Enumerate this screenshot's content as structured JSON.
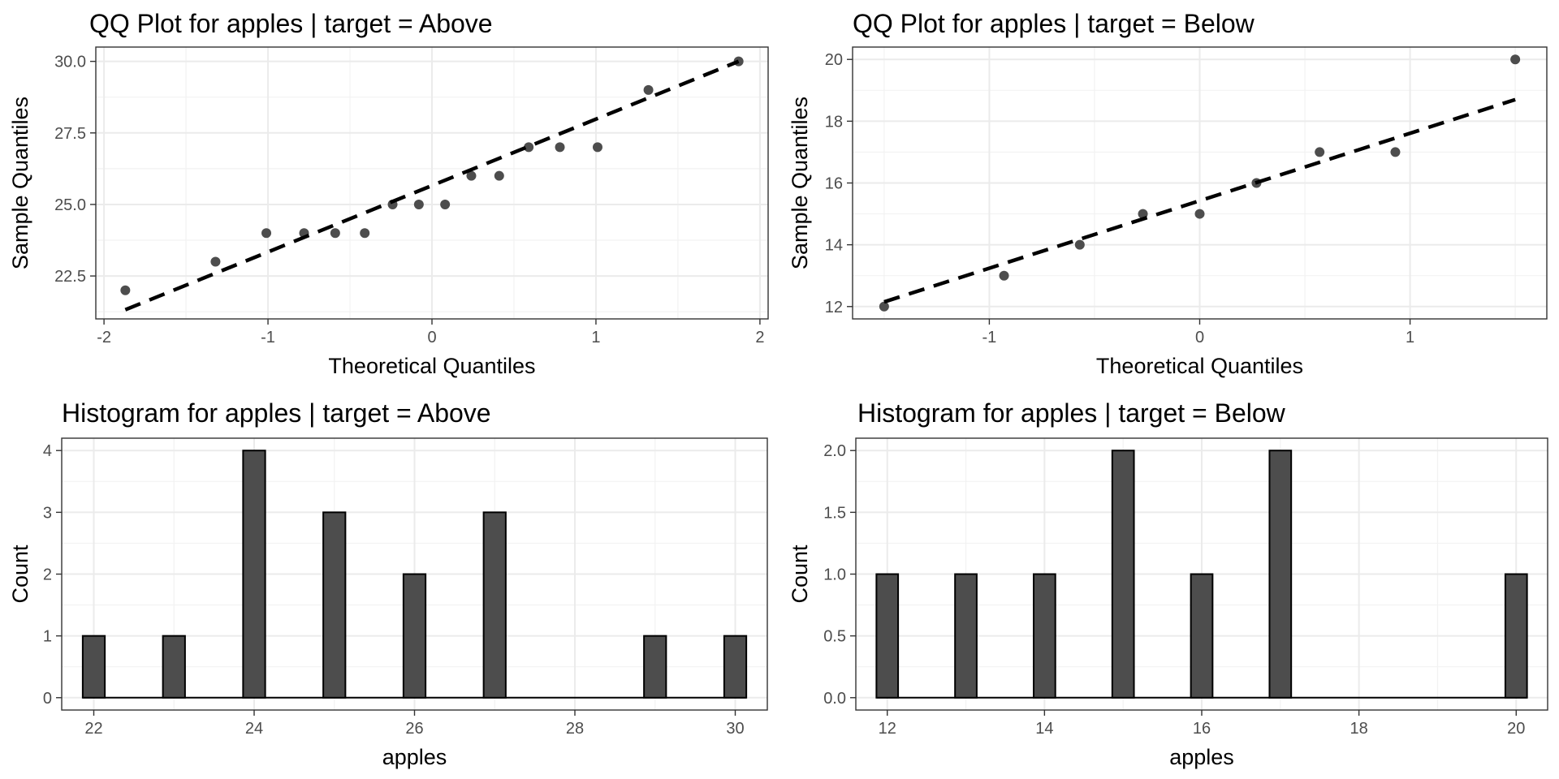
{
  "chart_data": [
    {
      "type": "scatter",
      "title": "QQ Plot for apples | target = Above",
      "xlabel": "Theoretical Quantiles",
      "ylabel": "Sample Quantiles",
      "xlim": [
        -2.05,
        2.05
      ],
      "ylim": [
        21.0,
        30.5
      ],
      "xticks": [
        -2,
        -1,
        0,
        1,
        2
      ],
      "xtick_labels": [
        "-2",
        "-1",
        "0",
        "1",
        "2"
      ],
      "yticks": [
        22.5,
        25.0,
        27.5,
        30.0
      ],
      "ytick_labels": [
        "22.5",
        "25.0",
        "27.5",
        "30.0"
      ],
      "grid": true,
      "points": [
        {
          "x": -1.87,
          "y": 22
        },
        {
          "x": -1.32,
          "y": 23
        },
        {
          "x": -1.01,
          "y": 24
        },
        {
          "x": -0.78,
          "y": 24
        },
        {
          "x": -0.59,
          "y": 24
        },
        {
          "x": -0.41,
          "y": 24
        },
        {
          "x": -0.24,
          "y": 25
        },
        {
          "x": -0.08,
          "y": 25
        },
        {
          "x": 0.08,
          "y": 25
        },
        {
          "x": 0.24,
          "y": 26
        },
        {
          "x": 0.41,
          "y": 26
        },
        {
          "x": 0.59,
          "y": 27
        },
        {
          "x": 0.78,
          "y": 27
        },
        {
          "x": 1.01,
          "y": 27
        },
        {
          "x": 1.32,
          "y": 29
        },
        {
          "x": 1.87,
          "y": 30
        }
      ],
      "reference_line": {
        "x": [
          -1.87,
          1.87
        ],
        "y": [
          21.32,
          30.0
        ],
        "style": "dashed"
      },
      "point_color": "#4d4d4d",
      "line_color": "#000000"
    },
    {
      "type": "scatter",
      "title": "QQ Plot for apples | target = Below",
      "xlabel": "Theoretical Quantiles",
      "ylabel": "Sample Quantiles",
      "xlim": [
        -1.65,
        1.65
      ],
      "ylim": [
        11.6,
        20.4
      ],
      "xticks": [
        -1,
        0,
        1
      ],
      "xtick_labels": [
        "-1",
        "0",
        "1"
      ],
      "yticks": [
        12,
        14,
        16,
        18,
        20
      ],
      "ytick_labels": [
        "12",
        "14",
        "16",
        "18",
        "20"
      ],
      "grid": true,
      "points": [
        {
          "x": -1.5,
          "y": 12
        },
        {
          "x": -0.93,
          "y": 13
        },
        {
          "x": -0.57,
          "y": 14
        },
        {
          "x": -0.27,
          "y": 15
        },
        {
          "x": 0.0,
          "y": 15
        },
        {
          "x": 0.27,
          "y": 16
        },
        {
          "x": 0.57,
          "y": 17
        },
        {
          "x": 0.93,
          "y": 17
        },
        {
          "x": 1.5,
          "y": 20
        }
      ],
      "reference_line": {
        "x": [
          -1.5,
          1.5
        ],
        "y": [
          12.15,
          18.7
        ],
        "style": "dashed"
      },
      "point_color": "#4d4d4d",
      "line_color": "#000000"
    },
    {
      "type": "bar",
      "title": "Histogram for apples | target = Above",
      "xlabel": "apples",
      "ylabel": "Count",
      "xlim": [
        21.6,
        30.4
      ],
      "ylim": [
        -0.2,
        4.2
      ],
      "xticks": [
        22,
        24,
        26,
        28,
        30
      ],
      "xtick_labels": [
        "22",
        "24",
        "26",
        "28",
        "30"
      ],
      "yticks": [
        0,
        1,
        2,
        3,
        4
      ],
      "ytick_labels": [
        "0",
        "1",
        "2",
        "3",
        "4"
      ],
      "grid": true,
      "bin_width": 0.2759,
      "bins": [
        {
          "x": 22,
          "count": 1
        },
        {
          "x": 23,
          "count": 1
        },
        {
          "x": 24,
          "count": 4
        },
        {
          "x": 25,
          "count": 3
        },
        {
          "x": 26,
          "count": 2
        },
        {
          "x": 27,
          "count": 3
        },
        {
          "x": 29,
          "count": 1
        },
        {
          "x": 30,
          "count": 1
        }
      ],
      "bar_fill": "#4d4d4d",
      "bar_outline": "#000000"
    },
    {
      "type": "bar",
      "title": "Histogram for apples | target = Below",
      "xlabel": "apples",
      "ylabel": "Count",
      "xlim": [
        11.6,
        20.4
      ],
      "ylim": [
        -0.1,
        2.1
      ],
      "xticks": [
        12,
        14,
        16,
        18,
        20
      ],
      "xtick_labels": [
        "12",
        "14",
        "16",
        "18",
        "20"
      ],
      "yticks": [
        0.0,
        0.5,
        1.0,
        1.5,
        2.0
      ],
      "ytick_labels": [
        "0.0",
        "0.5",
        "1.0",
        "1.5",
        "2.0"
      ],
      "grid": true,
      "bin_width": 0.2759,
      "bins": [
        {
          "x": 12,
          "count": 1
        },
        {
          "x": 13,
          "count": 1
        },
        {
          "x": 14,
          "count": 1
        },
        {
          "x": 15,
          "count": 2
        },
        {
          "x": 16,
          "count": 1
        },
        {
          "x": 17,
          "count": 2
        },
        {
          "x": 20,
          "count": 1
        }
      ],
      "bar_fill": "#4d4d4d",
      "bar_outline": "#000000"
    }
  ]
}
